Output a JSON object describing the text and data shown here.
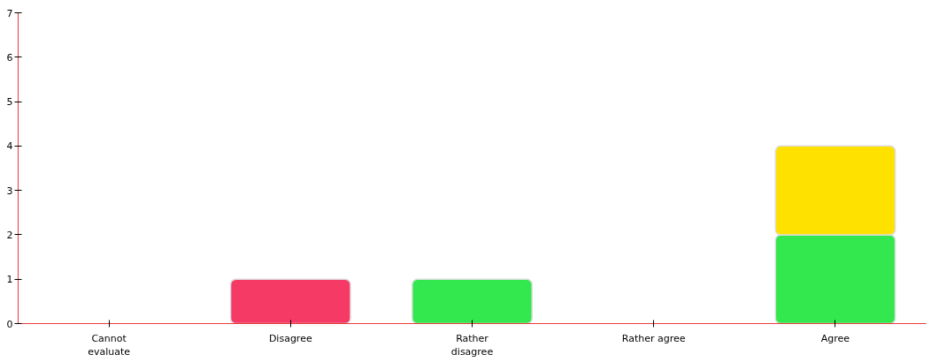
{
  "chart_data": {
    "type": "bar",
    "stacked": true,
    "categories": [
      "Cannot\nevaluate",
      "Disagree",
      "Rather\ndisagree",
      "Rather agree",
      "Agree"
    ],
    "series": [
      {
        "colors": [
          "#33e84f",
          "#f53a66",
          "#33e84f",
          "#33e84f",
          "#33e84f"
        ],
        "values": [
          0,
          1,
          1,
          0,
          2
        ]
      },
      {
        "colors": [
          "#ffe100",
          "#ffe100",
          "#ffe100",
          "#ffe100",
          "#ffe100"
        ],
        "values": [
          0,
          0,
          0,
          0,
          2
        ]
      }
    ],
    "ylim": [
      0,
      7
    ],
    "yticks": [
      0,
      1,
      2,
      3,
      4,
      5,
      6,
      7
    ]
  }
}
